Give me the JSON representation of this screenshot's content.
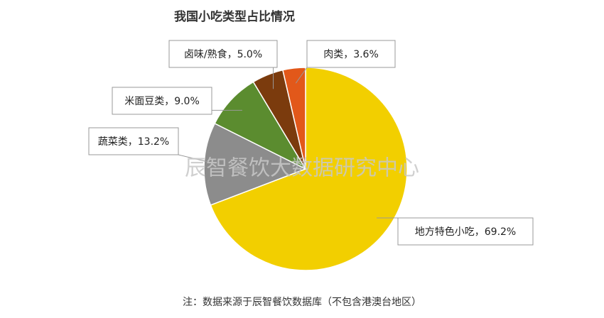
{
  "chart_data": {
    "type": "pie",
    "title": "我国小吃类型占比情况",
    "categories": [
      "地方特色小吃",
      "蔬菜类",
      "米面豆类",
      "卤味/熟食",
      "肉类"
    ],
    "values": [
      69.2,
      13.2,
      9.0,
      5.0,
      3.6
    ],
    "value_labels": [
      "69.2%",
      "13.2%",
      "9.0%",
      "5.0%",
      "3.6%"
    ],
    "label_separator": "，",
    "colors": [
      "#f2cf00",
      "#8c8c8c",
      "#5b8c2f",
      "#7b3b0d",
      "#e2581a"
    ],
    "watermark": "辰智餐饮大数据研究中心",
    "note": "注：数据来源于辰智餐饮数据库（不包含港澳台地区）"
  }
}
